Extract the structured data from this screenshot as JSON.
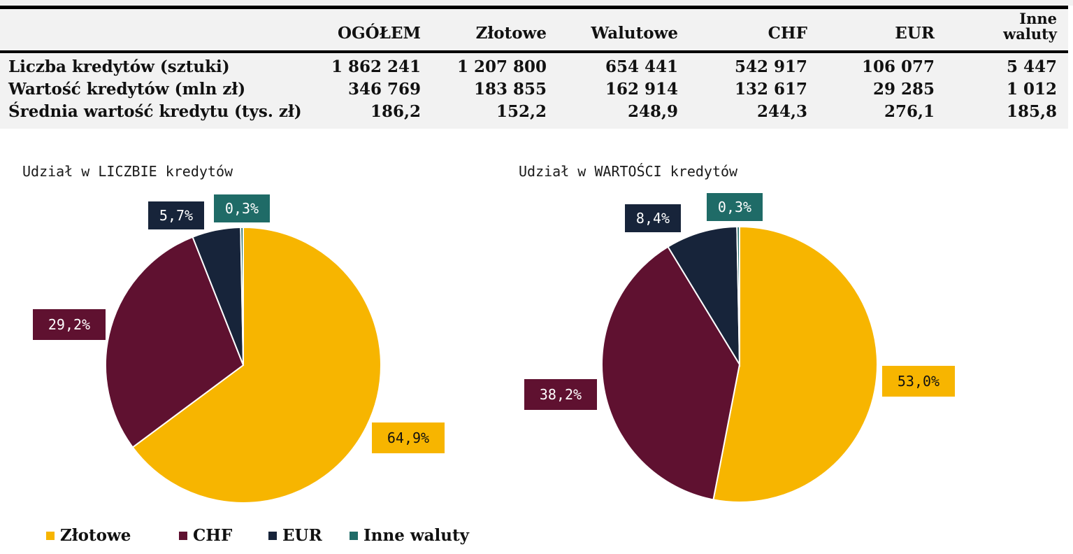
{
  "colors": {
    "zlotowe": "#f7b500",
    "chf": "#5f1130",
    "eur": "#17243a",
    "inne": "#1f6b67",
    "table_bg": "#f2f2f2"
  },
  "table": {
    "header": [
      "OGÓŁEM",
      "Złotowe",
      "Walutowe",
      "CHF",
      "EUR",
      [
        "Inne",
        "waluty"
      ]
    ],
    "rows": [
      {
        "label": "Liczba kredytów (sztuki)",
        "cells": [
          "1 862 241",
          "1 207 800",
          "654 441",
          "542 917",
          "106 077",
          "5 447"
        ]
      },
      {
        "label": "Wartość kredytów (mln zł)",
        "cells": [
          "346 769",
          "183 855",
          "162 914",
          "132 617",
          "29 285",
          "1 012"
        ]
      },
      {
        "label": "Średnia wartość kredytu (tys. zł)",
        "cells": [
          "186,2",
          "152,2",
          "248,9",
          "244,3",
          "276,1",
          "185,8"
        ]
      }
    ]
  },
  "chart_data": [
    {
      "type": "pie",
      "title": "Udział w LICZBIE kredytów",
      "slices": [
        {
          "name": "Złotowe",
          "value": 64.9,
          "label": "64,9%"
        },
        {
          "name": "CHF",
          "value": 29.2,
          "label": "29,2%"
        },
        {
          "name": "EUR",
          "value": 5.7,
          "label": "5,7%"
        },
        {
          "name": "Inne waluty",
          "value": 0.3,
          "label": "0,3%"
        }
      ]
    },
    {
      "type": "pie",
      "title": "Udział w WARTOŚCI kredytów",
      "slices": [
        {
          "name": "Złotowe",
          "value": 53.0,
          "label": "53,0%"
        },
        {
          "name": "CHF",
          "value": 38.2,
          "label": "38,2%"
        },
        {
          "name": "EUR",
          "value": 8.4,
          "label": "8,4%"
        },
        {
          "name": "Inne waluty",
          "value": 0.3,
          "label": "0,3%"
        }
      ]
    }
  ],
  "legend": {
    "placement": "bottom-left",
    "items": [
      {
        "label": "Złotowe",
        "color_key": "zlotowe"
      },
      {
        "label": "CHF",
        "color_key": "chf"
      },
      {
        "label": "EUR",
        "color_key": "eur"
      },
      {
        "label": "Inne waluty",
        "color_key": "inne"
      }
    ]
  }
}
